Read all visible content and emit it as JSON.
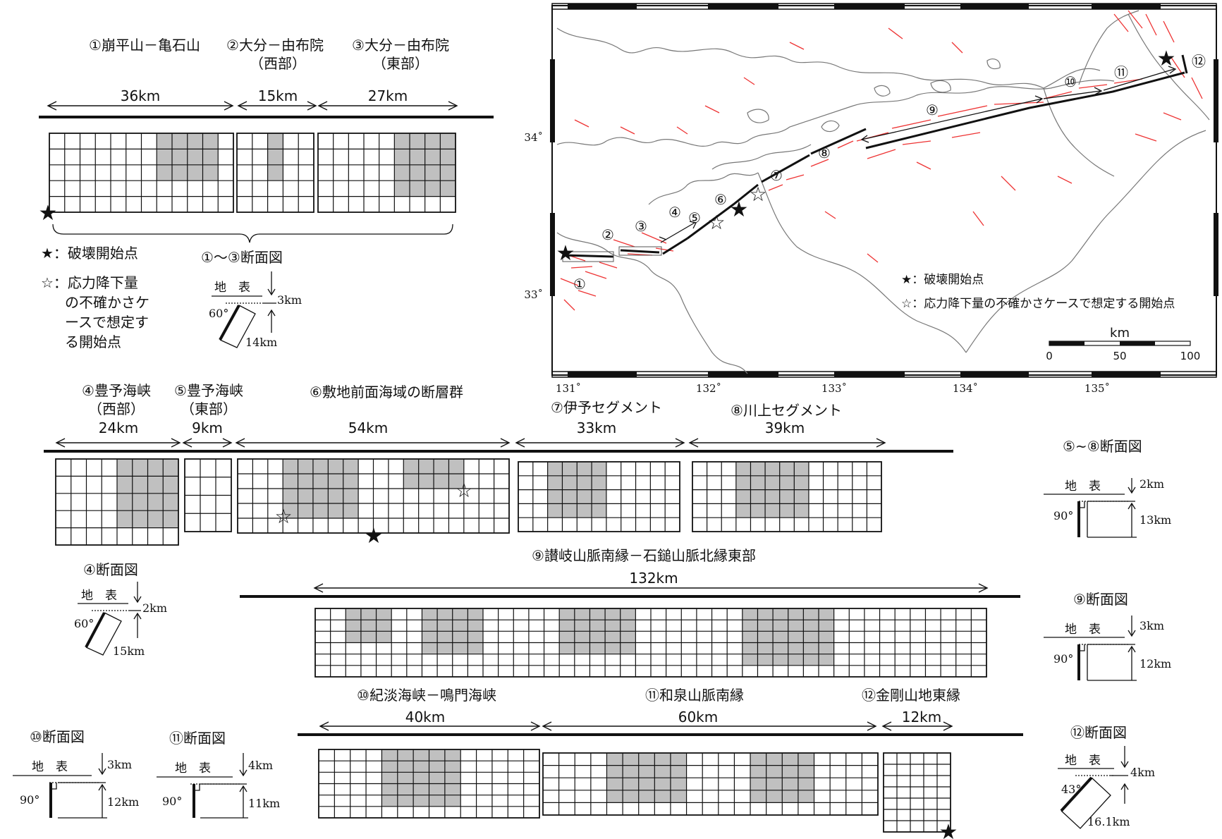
{
  "faults": [
    {
      "id": "f1",
      "label": "①崩平山－亀石山",
      "length": "36km",
      "cols": 12,
      "rows": 5,
      "shade": [
        7,
        0,
        4,
        3
      ]
    },
    {
      "id": "f2",
      "label": "②大分－由布院",
      "sub": "（西部）",
      "length": "15km",
      "cols": 5,
      "rows": 5,
      "shade": [
        2,
        0,
        1,
        3
      ]
    },
    {
      "id": "f3",
      "label": "③大分－由布院",
      "sub": "（東部）",
      "length": "27km",
      "cols": 9,
      "rows": 5,
      "shade": [
        5,
        0,
        4,
        4
      ]
    },
    {
      "id": "f4",
      "label": "④豊予海峡",
      "sub": "（西部）",
      "length": "24km",
      "cols": 8,
      "rows": 5,
      "shade": [
        4,
        0,
        4,
        4
      ]
    },
    {
      "id": "f5",
      "label": "⑤豊予海峡",
      "sub": "（東部）",
      "length": "9km",
      "cols": 3,
      "rows": 4,
      "shade": null
    },
    {
      "id": "f6",
      "label": "⑥敷地前面海域の断層群",
      "length": "54km",
      "cols": 18,
      "rows": 5,
      "shade": [
        3,
        0,
        5,
        4
      ],
      "shade2": [
        11,
        0,
        4,
        2
      ]
    },
    {
      "id": "f7",
      "label": "⑦伊予セグメント",
      "length": "33km",
      "cols": 11,
      "rows": 5,
      "shade": [
        2,
        0,
        4,
        4
      ]
    },
    {
      "id": "f8",
      "label": "⑧川上セグメント",
      "length": "39km",
      "cols": 13,
      "rows": 5,
      "shade": [
        3,
        0,
        5,
        4
      ]
    },
    {
      "id": "f9",
      "label": "⑨讃岐山脈南縁－石鎚山脈北縁東部",
      "length": "132km",
      "cols": 44,
      "rows": 6,
      "shade": [
        2,
        0,
        3,
        3
      ],
      "shade2": [
        7,
        0,
        4,
        4
      ],
      "shade3": [
        16,
        0,
        5,
        4
      ],
      "shade4": [
        28,
        0,
        6,
        5
      ]
    },
    {
      "id": "f10",
      "label": "⑩紀淡海峡－鳴門海峡",
      "length": "40km",
      "cols": 14,
      "rows": 6,
      "shade": [
        4,
        0,
        5,
        5
      ]
    },
    {
      "id": "f11",
      "label": "⑪和泉山脈南縁",
      "length": "60km",
      "cols": 21,
      "rows": 5,
      "shade": [
        4,
        0,
        5,
        4
      ],
      "shade2": [
        13,
        0,
        4,
        4
      ]
    },
    {
      "id": "f12",
      "label": "⑫金剛山地東縁",
      "length": "12km",
      "cols": 5,
      "rows": 7,
      "shade": null
    }
  ],
  "legend_left": {
    "solid_star": "★：破壊開始点",
    "open_star_lines": [
      "☆：応力降下量",
      "の不確かさケ",
      "ースで想定す",
      "る開始点"
    ]
  },
  "sections": {
    "s1": {
      "title": "①～③断面図",
      "surface": "地　表",
      "depth": "3km",
      "angle": "60°",
      "width": "14km"
    },
    "s4": {
      "title": "④断面図",
      "surface": "地　表",
      "depth": "2km",
      "angle": "60°",
      "width": "15km"
    },
    "s58": {
      "title": "⑤~⑧断面図",
      "surface": "地　表",
      "depth": "2km",
      "angle": "90°",
      "width": "13km"
    },
    "s9": {
      "title": "⑨断面図",
      "surface": "地　表",
      "depth": "3km",
      "angle": "90°",
      "width": "12km"
    },
    "s10": {
      "title": "⑩断面図",
      "surface": "地　表",
      "depth": "3km",
      "angle": "90°",
      "width": "12km"
    },
    "s11": {
      "title": "⑪断面図",
      "surface": "地　表",
      "depth": "4km",
      "angle": "90°",
      "width": "11km"
    },
    "s12": {
      "title": "⑫断面図",
      "surface": "地　表",
      "depth": "4km",
      "angle": "43°",
      "width": "16.1km"
    }
  },
  "map": {
    "lat_labels": [
      "34˚",
      "33˚"
    ],
    "lon_labels": [
      "131˚",
      "132˚",
      "133˚",
      "134˚",
      "135˚"
    ],
    "legend": [
      "★：破壊開始点",
      "☆：応力降下量の不確かさケースで想定する開始点"
    ],
    "scale_unit": "km",
    "scale_ticks": [
      "0",
      "50",
      "100"
    ],
    "fault_numbers": [
      "①",
      "②",
      "③",
      "④",
      "⑤",
      "⑥",
      "⑦",
      "⑧",
      "⑨",
      "⑩",
      "⑪",
      "⑫"
    ]
  },
  "colors": {
    "shade": "#c0c0c0",
    "fault_trace": "#e33",
    "coast": "#777"
  }
}
